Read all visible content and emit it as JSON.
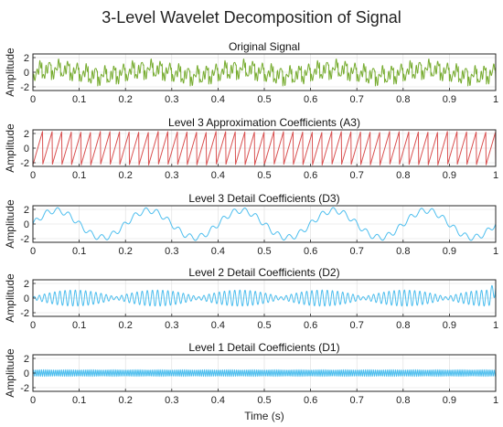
{
  "title": "3-Level Wavelet Decomposition of Signal",
  "chart_data": [
    {
      "type": "line",
      "title": "Original Signal",
      "xlabel": "",
      "ylabel": "Amplitude",
      "xlim": [
        0,
        1
      ],
      "ylim": [
        -2.5,
        2.5
      ],
      "xticks": [
        "0",
        "0.1",
        "0.2",
        "0.3",
        "0.4",
        "0.5",
        "0.6",
        "0.7",
        "0.8",
        "0.9",
        "1"
      ],
      "yticks": [
        "-2",
        "0",
        "2"
      ],
      "grid": true,
      "color": "#77ac30",
      "series": [
        {
          "components": [
            {
              "type": "sawtooth",
              "freq": 50,
              "amp": 1.2
            },
            {
              "type": "sine",
              "freq": 5,
              "amp": 0.45
            },
            {
              "type": "sine",
              "freq": 150,
              "amp": 0.55
            },
            {
              "type": "sine",
              "freq": 220,
              "amp": 0.25
            }
          ]
        }
      ]
    },
    {
      "type": "line",
      "title": "Level 3 Approximation Coefficients (A3)",
      "xlabel": "",
      "ylabel": "Amplitude",
      "xlim": [
        0,
        1
      ],
      "ylim": [
        -2.5,
        2.5
      ],
      "xticks": [
        "0",
        "0.1",
        "0.2",
        "0.3",
        "0.4",
        "0.5",
        "0.6",
        "0.7",
        "0.8",
        "0.9",
        "1"
      ],
      "yticks": [
        "-2",
        "0",
        "2"
      ],
      "grid": true,
      "color": "#d95050",
      "series": [
        {
          "components": [
            {
              "type": "sawtooth",
              "freq": 48,
              "amp": 2.3
            }
          ]
        }
      ]
    },
    {
      "type": "line",
      "title": "Level 3 Detail Coefficients (D3)",
      "xlabel": "",
      "ylabel": "Amplitude",
      "xlim": [
        0,
        1
      ],
      "ylim": [
        -2.5,
        2.5
      ],
      "xticks": [
        "0",
        "0.1",
        "0.2",
        "0.3",
        "0.4",
        "0.5",
        "0.6",
        "0.7",
        "0.8",
        "0.9",
        "1"
      ],
      "yticks": [
        "-2",
        "0",
        "2"
      ],
      "grid": true,
      "color": "#4dbeee",
      "series": [
        {
          "components": [
            {
              "type": "sine",
              "freq": 5,
              "amp": 1.85
            },
            {
              "type": "sine",
              "freq": 42,
              "amp": 0.4
            }
          ]
        }
      ]
    },
    {
      "type": "line",
      "title": "Level 2 Detail Coefficients (D2)",
      "xlabel": "",
      "ylabel": "Amplitude",
      "xlim": [
        0,
        1
      ],
      "ylim": [
        -2.5,
        2.5
      ],
      "xticks": [
        "0",
        "0.1",
        "0.2",
        "0.3",
        "0.4",
        "0.5",
        "0.6",
        "0.7",
        "0.8",
        "0.9",
        "1"
      ],
      "yticks": [
        "-2",
        "0",
        "2"
      ],
      "grid": true,
      "color": "#4dbeee",
      "series": [
        {
          "components": [
            {
              "type": "am",
              "carrier": 90,
              "envelope": 5.6,
              "amp": 1.1,
              "floor": 0.15
            },
            {
              "type": "end_spike",
              "amp": 1.4
            }
          ]
        }
      ]
    },
    {
      "type": "line",
      "title": "Level 1 Detail Coefficients (D1)",
      "xlabel": "Time (s)",
      "ylabel": "Amplitude",
      "xlim": [
        0,
        1
      ],
      "ylim": [
        -2.5,
        2.5
      ],
      "xticks": [
        "0",
        "0.1",
        "0.2",
        "0.3",
        "0.4",
        "0.5",
        "0.6",
        "0.7",
        "0.8",
        "0.9",
        "1"
      ],
      "yticks": [
        "-2",
        "0",
        "2"
      ],
      "grid": true,
      "color": "#4dbeee",
      "series": [
        {
          "components": [
            {
              "type": "sine",
              "freq": 230,
              "amp": 0.45
            }
          ]
        }
      ]
    }
  ]
}
